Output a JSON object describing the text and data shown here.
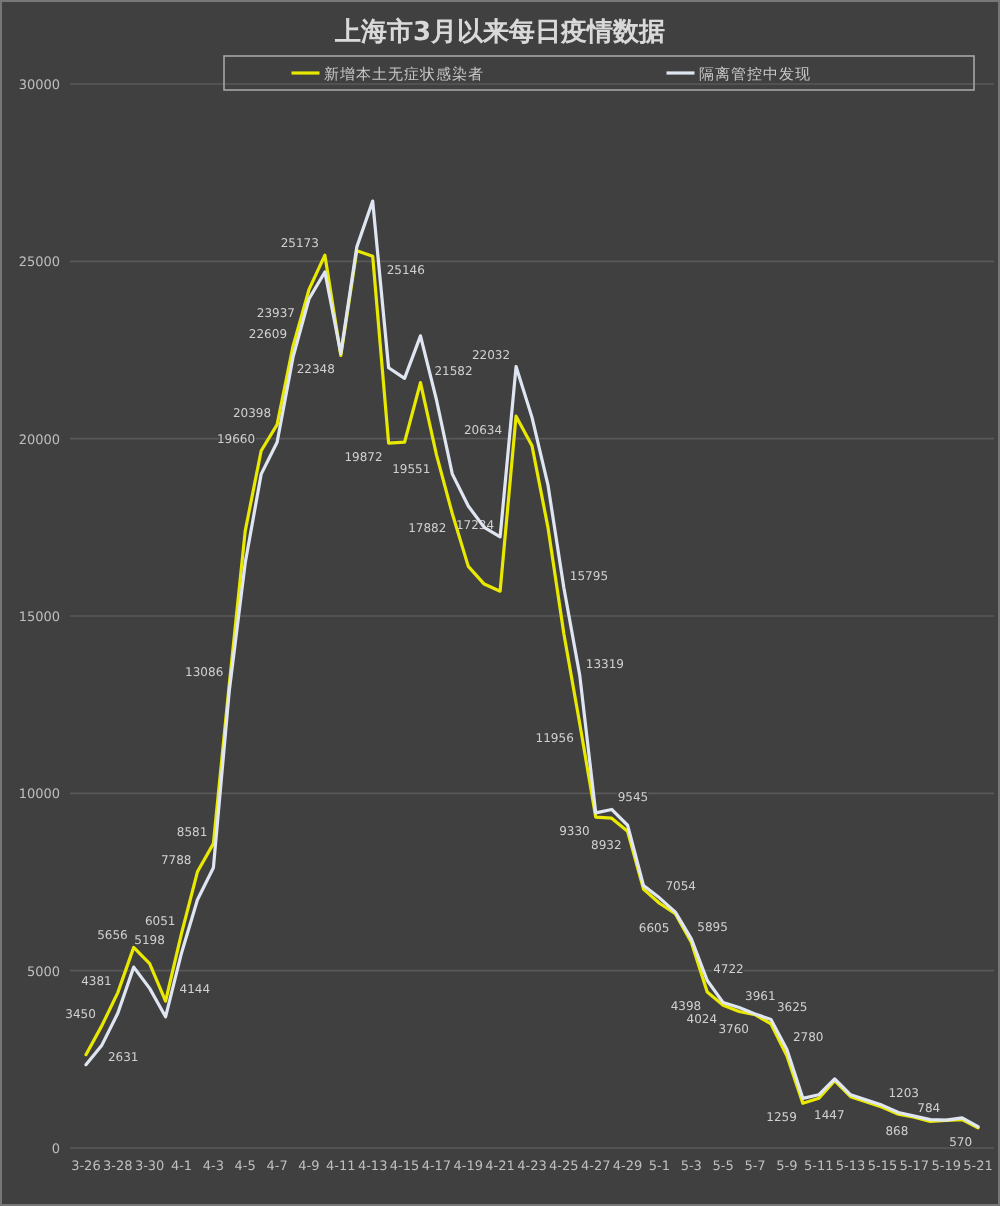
{
  "chart_data": {
    "type": "line",
    "title": "上海市3月以来每日疫情数据",
    "legend": "top",
    "grid": "y",
    "ylim": [
      0,
      30000
    ],
    "yticks": [
      0,
      5000,
      10000,
      15000,
      20000,
      25000,
      30000
    ],
    "xlim": [
      "--03-25",
      "--05-22"
    ],
    "xticks": [
      {
        "value": "--03-26",
        "label": "3-26"
      },
      {
        "value": "--03-28",
        "label": "3-28"
      },
      {
        "value": "--03-30",
        "label": "3-30"
      },
      {
        "value": "--04-01",
        "label": "4-1"
      },
      {
        "value": "--04-03",
        "label": "4-3"
      },
      {
        "value": "--04-05",
        "label": "4-5"
      },
      {
        "value": "--04-07",
        "label": "4-7"
      },
      {
        "value": "--04-09",
        "label": "4-9"
      },
      {
        "value": "--04-11",
        "label": "4-11"
      },
      {
        "value": "--04-13",
        "label": "4-13"
      },
      {
        "value": "--04-15",
        "label": "4-15"
      },
      {
        "value": "--04-17",
        "label": "4-17"
      },
      {
        "value": "--04-19",
        "label": "4-19"
      },
      {
        "value": "--04-21",
        "label": "4-21"
      },
      {
        "value": "--04-23",
        "label": "4-23"
      },
      {
        "value": "--04-25",
        "label": "4-25"
      },
      {
        "value": "--04-27",
        "label": "4-27"
      },
      {
        "value": "--04-29",
        "label": "4-29"
      },
      {
        "value": "--05-01",
        "label": "5-1"
      },
      {
        "value": "--05-03",
        "label": "5-3"
      },
      {
        "value": "--05-05",
        "label": "5-5"
      },
      {
        "value": "--05-07",
        "label": "5-7"
      },
      {
        "value": "--05-09",
        "label": "5-9"
      },
      {
        "value": "--05-11",
        "label": "5-11"
      },
      {
        "value": "--05-13",
        "label": "5-13"
      },
      {
        "value": "--05-15",
        "label": "5-15"
      },
      {
        "value": "--05-17",
        "label": "5-17"
      },
      {
        "value": "--05-19",
        "label": "5-19"
      },
      {
        "value": "--05-21",
        "label": "5-21"
      }
    ],
    "x": [
      "--03-26",
      "--03-27",
      "--03-28",
      "--03-29",
      "--03-30",
      "--03-31",
      "--04-01",
      "--04-02",
      "--04-03",
      "--04-04",
      "--04-05",
      "--04-06",
      "--04-07",
      "--04-08",
      "--04-09",
      "--04-10",
      "--04-11",
      "--04-12",
      "--04-13",
      "--04-14",
      "--04-15",
      "--04-16",
      "--04-17",
      "--04-18",
      "--04-19",
      "--04-20",
      "--04-21",
      "--04-22",
      "--04-23",
      "--04-24",
      "--04-25",
      "--04-26",
      "--04-27",
      "--04-28",
      "--04-29",
      "--04-30",
      "--05-01",
      "--05-02",
      "--05-03",
      "--05-04",
      "--05-05",
      "--05-06",
      "--05-07",
      "--05-08",
      "--05-09",
      "--05-10",
      "--05-11",
      "--05-12",
      "--05-13",
      "--05-14",
      "--05-15",
      "--05-16",
      "--05-17",
      "--05-18",
      "--05-19",
      "--05-20",
      "--05-21"
    ],
    "series": [
      {
        "name": "新增本土无症状感染者",
        "color": "#e8e800",
        "values": [
          2631,
          3450,
          4381,
          5656,
          5198,
          4144,
          6051,
          7788,
          8581,
          13086,
          17400,
          19660,
          20398,
          22609,
          24200,
          25173,
          22348,
          25300,
          25146,
          19872,
          19900,
          21582,
          19551,
          17882,
          16400,
          15900,
          15700,
          20634,
          19800,
          17500,
          14500,
          11956,
          9330,
          9300,
          8932,
          7300,
          6900,
          6605,
          5800,
          4398,
          4024,
          3850,
          3760,
          3500,
          2600,
          1259,
          1400,
          1900,
          1447,
          1300,
          1150,
          950,
          868,
          750,
          780,
          800,
          570
        ],
        "value_labels": [
          "2631",
          "3450",
          "4381",
          "5656",
          "5198",
          "4144",
          "6051",
          "7788",
          "8581",
          "13086",
          null,
          "19660",
          "20398",
          "22609",
          null,
          "25173",
          "22348",
          null,
          "25146",
          "19872",
          null,
          "21582",
          "19551",
          "17882",
          null,
          null,
          null,
          "20634",
          null,
          null,
          null,
          "11956",
          "9330",
          null,
          "8932",
          null,
          null,
          "6605",
          null,
          "4398",
          "4024",
          null,
          "3760",
          null,
          null,
          "1259",
          null,
          null,
          "1447",
          null,
          null,
          null,
          "868",
          null,
          null,
          null,
          "570"
        ]
      },
      {
        "name": "隔离管控中发现",
        "color": "#dfe6f2",
        "values": [
          2350,
          2900,
          3800,
          5100,
          4500,
          3700,
          5500,
          7000,
          7900,
          12900,
          16500,
          19000,
          19900,
          22300,
          23937,
          24700,
          22400,
          25400,
          26700,
          22000,
          21700,
          22900,
          21100,
          19000,
          18100,
          17500,
          17234,
          22032,
          20600,
          18700,
          15795,
          13319,
          9450,
          9545,
          9100,
          7400,
          7054,
          6650,
          5895,
          4722,
          4100,
          3961,
          3780,
          3625,
          2780,
          1400,
          1500,
          1950,
          1500,
          1350,
          1203,
          1000,
          900,
          800,
          784,
          850,
          600
        ],
        "value_labels": [
          null,
          null,
          null,
          null,
          null,
          null,
          null,
          null,
          null,
          null,
          null,
          null,
          null,
          null,
          "23937",
          null,
          null,
          null,
          null,
          null,
          null,
          null,
          null,
          null,
          null,
          null,
          "17234",
          "22032",
          null,
          null,
          "15795",
          "13319",
          null,
          "9545",
          null,
          null,
          "7054",
          null,
          "5895",
          "4722",
          null,
          "3961",
          null,
          "3625",
          "2780",
          null,
          null,
          null,
          null,
          null,
          "1203",
          null,
          null,
          null,
          "784",
          null,
          null
        ]
      }
    ]
  }
}
